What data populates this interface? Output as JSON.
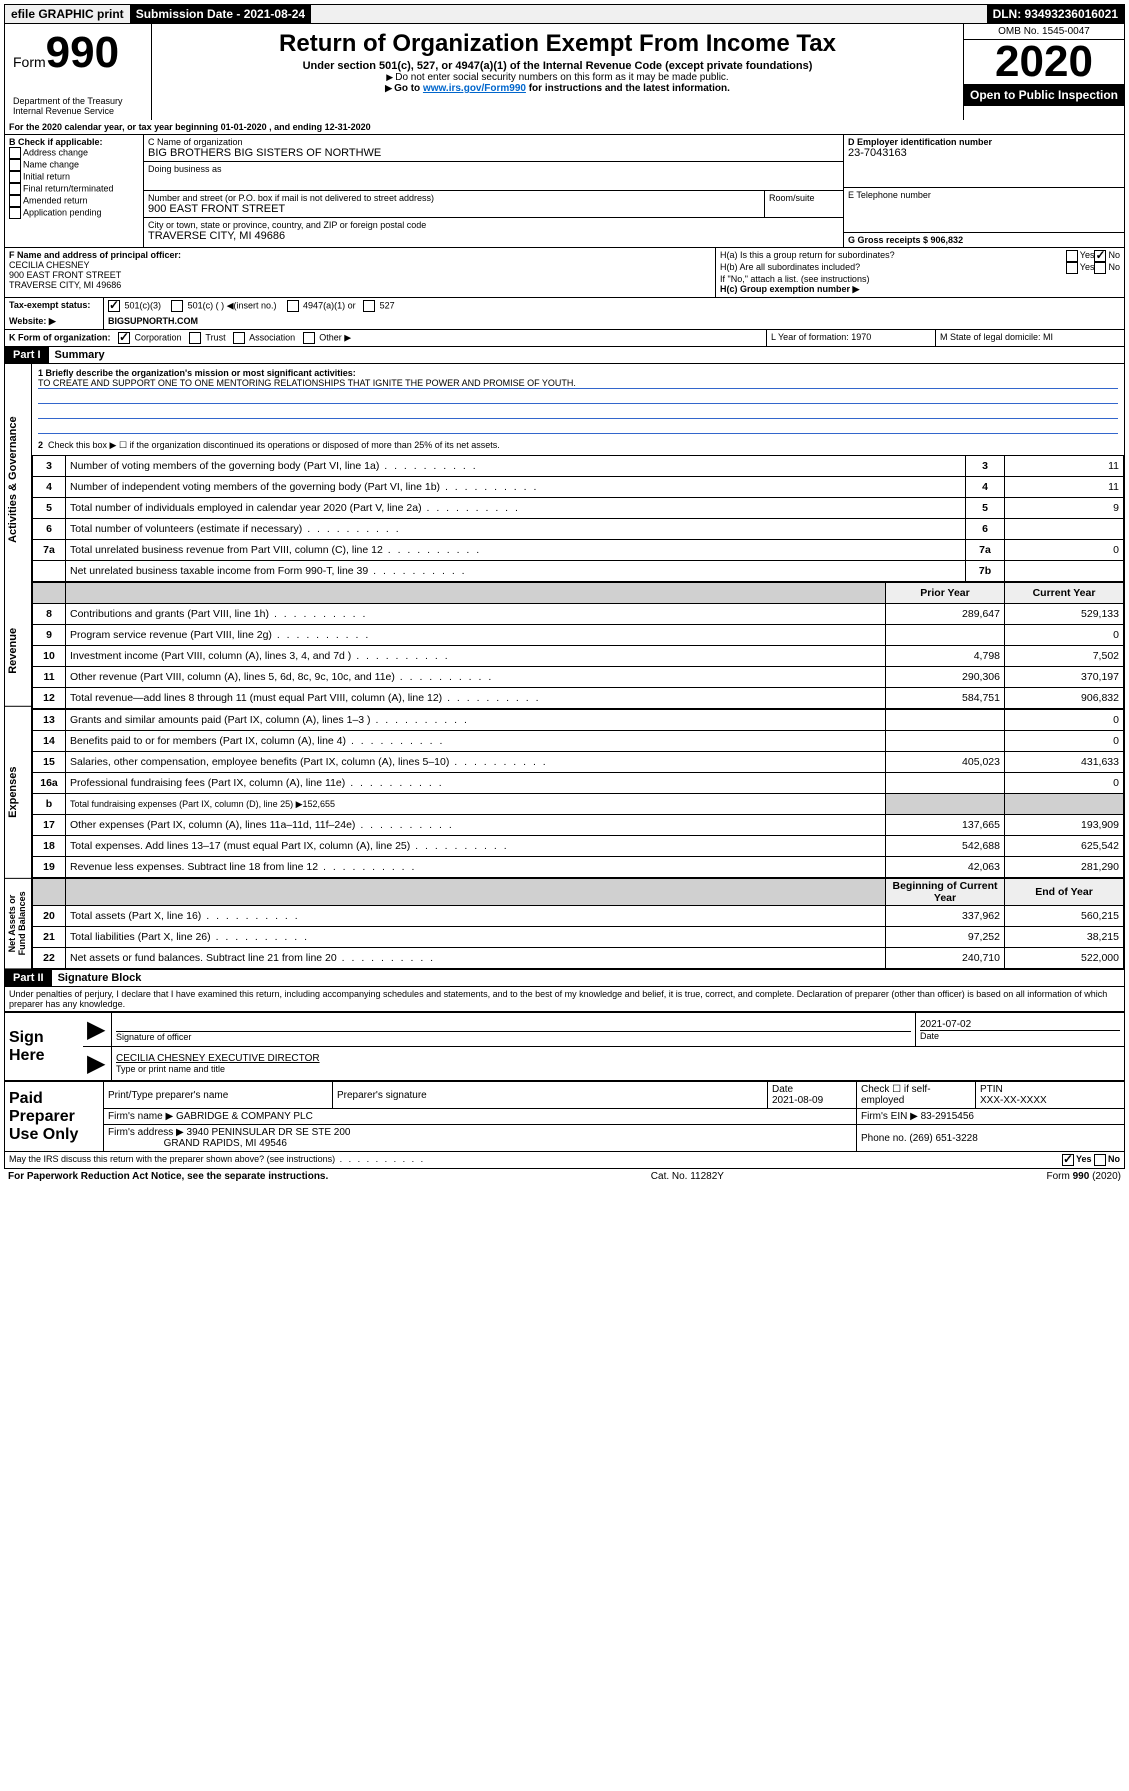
{
  "topbar": {
    "efile": "efile GRAPHIC print",
    "submission_label": "Submission Date - 2021-08-24",
    "dln_label": "DLN: 93493236016021"
  },
  "header": {
    "form_label": "Form",
    "form_number": "990",
    "dept": "Department of the Treasury\nInternal Revenue Service",
    "title": "Return of Organization Exempt From Income Tax",
    "subtitle": "Under section 501(c), 527, or 4947(a)(1) of the Internal Revenue Code (except private foundations)",
    "note1": "Do not enter social security numbers on this form as it may be made public.",
    "note2": "Go to www.irs.gov/Form990 for instructions and the latest information.",
    "omb": "OMB No. 1545-0047",
    "year": "2020",
    "open_public": "Open to Public Inspection"
  },
  "section_a": {
    "period": "For the 2020 calendar year, or tax year beginning 01-01-2020   , and ending 12-31-2020",
    "check_label": "B Check if applicable:",
    "checks": [
      "Address change",
      "Name change",
      "Initial return",
      "Final return/terminated",
      "Amended return",
      "Application pending"
    ],
    "c_name_label": "C Name of organization",
    "c_name": "BIG BROTHERS BIG SISTERS OF NORTHWE",
    "dba_label": "Doing business as",
    "addr_label": "Number and street (or P.O. box if mail is not delivered to street address)",
    "room_label": "Room/suite",
    "addr": "900 EAST FRONT STREET",
    "city_label": "City or town, state or province, country, and ZIP or foreign postal code",
    "city": "TRAVERSE CITY, MI  49686",
    "d_ein_label": "D Employer identification number",
    "d_ein": "23-7043163",
    "e_tel_label": "E Telephone number",
    "g_receipts_label": "G Gross receipts $ 906,832",
    "f_label": "F  Name and address of principal officer:",
    "f_name": "CECILIA CHESNEY",
    "f_addr1": "900 EAST FRONT STREET",
    "f_addr2": "TRAVERSE CITY, MI  49686",
    "ha_label": "H(a)  Is this a group return for subordinates?",
    "hb_label": "H(b)  Are all subordinates included?",
    "hb_note": "If \"No,\" attach a list. (see instructions)",
    "hc_label": "H(c)  Group exemption number ▶",
    "yes": "Yes",
    "no": "No",
    "i_label": "Tax-exempt status:",
    "i_501c3": "501(c)(3)",
    "i_501c": "501(c) (  ) ◀(insert no.)",
    "i_4947": "4947(a)(1) or",
    "i_527": "527",
    "j_label": "Website: ▶",
    "j_value": "BIGSUPNORTH.COM",
    "k_label": "K Form of organization:",
    "k_corp": "Corporation",
    "k_trust": "Trust",
    "k_assoc": "Association",
    "k_other": "Other ▶",
    "l_label": "L Year of formation: 1970",
    "m_label": "M State of legal domicile: MI"
  },
  "part1": {
    "label": "Part I",
    "title": "Summary",
    "line1_label": "1  Briefly describe the organization's mission or most significant activities:",
    "line1_text": "TO CREATE AND SUPPORT ONE TO ONE MENTORING RELATIONSHIPS THAT IGNITE THE POWER AND PROMISE OF YOUTH.",
    "line2": "Check this box ▶ ☐  if the organization discontinued its operations or disposed of more than 25% of its net assets.",
    "sections": {
      "gov": "Activities & Governance",
      "rev": "Revenue",
      "exp": "Expenses",
      "net": "Net Assets or Fund Balances"
    },
    "rows_gov": [
      {
        "n": "3",
        "label": "Number of voting members of the governing body (Part VI, line 1a)",
        "box": "3",
        "val": "11"
      },
      {
        "n": "4",
        "label": "Number of independent voting members of the governing body (Part VI, line 1b)",
        "box": "4",
        "val": "11"
      },
      {
        "n": "5",
        "label": "Total number of individuals employed in calendar year 2020 (Part V, line 2a)",
        "box": "5",
        "val": "9"
      },
      {
        "n": "6",
        "label": "Total number of volunteers (estimate if necessary)",
        "box": "6",
        "val": ""
      },
      {
        "n": "7a",
        "label": "Total unrelated business revenue from Part VIII, column (C), line 12",
        "box": "7a",
        "val": "0"
      },
      {
        "n": "",
        "label": "Net unrelated business taxable income from Form 990-T, line 39",
        "box": "7b",
        "val": ""
      }
    ],
    "hdr_prior": "Prior Year",
    "hdr_current": "Current Year",
    "rows_rev": [
      {
        "n": "8",
        "label": "Contributions and grants (Part VIII, line 1h)",
        "prior": "289,647",
        "cur": "529,133"
      },
      {
        "n": "9",
        "label": "Program service revenue (Part VIII, line 2g)",
        "prior": "",
        "cur": "0"
      },
      {
        "n": "10",
        "label": "Investment income (Part VIII, column (A), lines 3, 4, and 7d )",
        "prior": "4,798",
        "cur": "7,502"
      },
      {
        "n": "11",
        "label": "Other revenue (Part VIII, column (A), lines 5, 6d, 8c, 9c, 10c, and 11e)",
        "prior": "290,306",
        "cur": "370,197"
      },
      {
        "n": "12",
        "label": "Total revenue—add lines 8 through 11 (must equal Part VIII, column (A), line 12)",
        "prior": "584,751",
        "cur": "906,832"
      }
    ],
    "rows_exp": [
      {
        "n": "13",
        "label": "Grants and similar amounts paid (Part IX, column (A), lines 1–3 )",
        "prior": "",
        "cur": "0"
      },
      {
        "n": "14",
        "label": "Benefits paid to or for members (Part IX, column (A), line 4)",
        "prior": "",
        "cur": "0"
      },
      {
        "n": "15",
        "label": "Salaries, other compensation, employee benefits (Part IX, column (A), lines 5–10)",
        "prior": "405,023",
        "cur": "431,633"
      },
      {
        "n": "16a",
        "label": "Professional fundraising fees (Part IX, column (A), line 11e)",
        "prior": "",
        "cur": "0"
      },
      {
        "n": "b",
        "label": "Total fundraising expenses (Part IX, column (D), line 25) ▶152,655",
        "prior": null,
        "cur": null
      },
      {
        "n": "17",
        "label": "Other expenses (Part IX, column (A), lines 11a–11d, 11f–24e)",
        "prior": "137,665",
        "cur": "193,909"
      },
      {
        "n": "18",
        "label": "Total expenses. Add lines 13–17 (must equal Part IX, column (A), line 25)",
        "prior": "542,688",
        "cur": "625,542"
      },
      {
        "n": "19",
        "label": "Revenue less expenses. Subtract line 18 from line 12",
        "prior": "42,063",
        "cur": "281,290"
      }
    ],
    "hdr_begin": "Beginning of Current Year",
    "hdr_end": "End of Year",
    "rows_net": [
      {
        "n": "20",
        "label": "Total assets (Part X, line 16)",
        "prior": "337,962",
        "cur": "560,215"
      },
      {
        "n": "21",
        "label": "Total liabilities (Part X, line 26)",
        "prior": "97,252",
        "cur": "38,215"
      },
      {
        "n": "22",
        "label": "Net assets or fund balances. Subtract line 21 from line 20",
        "prior": "240,710",
        "cur": "522,000"
      }
    ]
  },
  "part2": {
    "label": "Part II",
    "title": "Signature Block",
    "declaration": "Under penalties of perjury, I declare that I have examined this return, including accompanying schedules and statements, and to the best of my knowledge and belief, it is true, correct, and complete. Declaration of preparer (other than officer) is based on all information of which preparer has any knowledge.",
    "sign_here": "Sign Here",
    "sig_officer": "Signature of officer",
    "sig_date": "2021-07-02",
    "date_label": "Date",
    "officer_name": "CECILIA CHESNEY  EXECUTIVE DIRECTOR",
    "officer_label": "Type or print name and title",
    "paid": "Paid Preparer Use Only",
    "prep_name_label": "Print/Type preparer's name",
    "prep_sig_label": "Preparer's signature",
    "prep_date_label": "Date",
    "prep_date": "2021-08-09",
    "check_self": "Check ☐ if self-employed",
    "ptin_label": "PTIN",
    "ptin": "XXX-XX-XXXX",
    "firm_name_label": "Firm's name   ▶",
    "firm_name": "GABRIDGE & COMPANY PLC",
    "firm_ein_label": "Firm's EIN ▶",
    "firm_ein": "83-2915456",
    "firm_addr_label": "Firm's address ▶",
    "firm_addr": "3940 PENINSULAR DR SE STE 200",
    "firm_city": "GRAND RAPIDS, MI  49546",
    "phone_label": "Phone no.",
    "phone": "(269) 651-3228",
    "discuss": "May the IRS discuss this return with the preparer shown above? (see instructions)"
  },
  "footer": {
    "left": "For Paperwork Reduction Act Notice, see the separate instructions.",
    "mid": "Cat. No. 11282Y",
    "right": "Form 990 (2020)"
  }
}
